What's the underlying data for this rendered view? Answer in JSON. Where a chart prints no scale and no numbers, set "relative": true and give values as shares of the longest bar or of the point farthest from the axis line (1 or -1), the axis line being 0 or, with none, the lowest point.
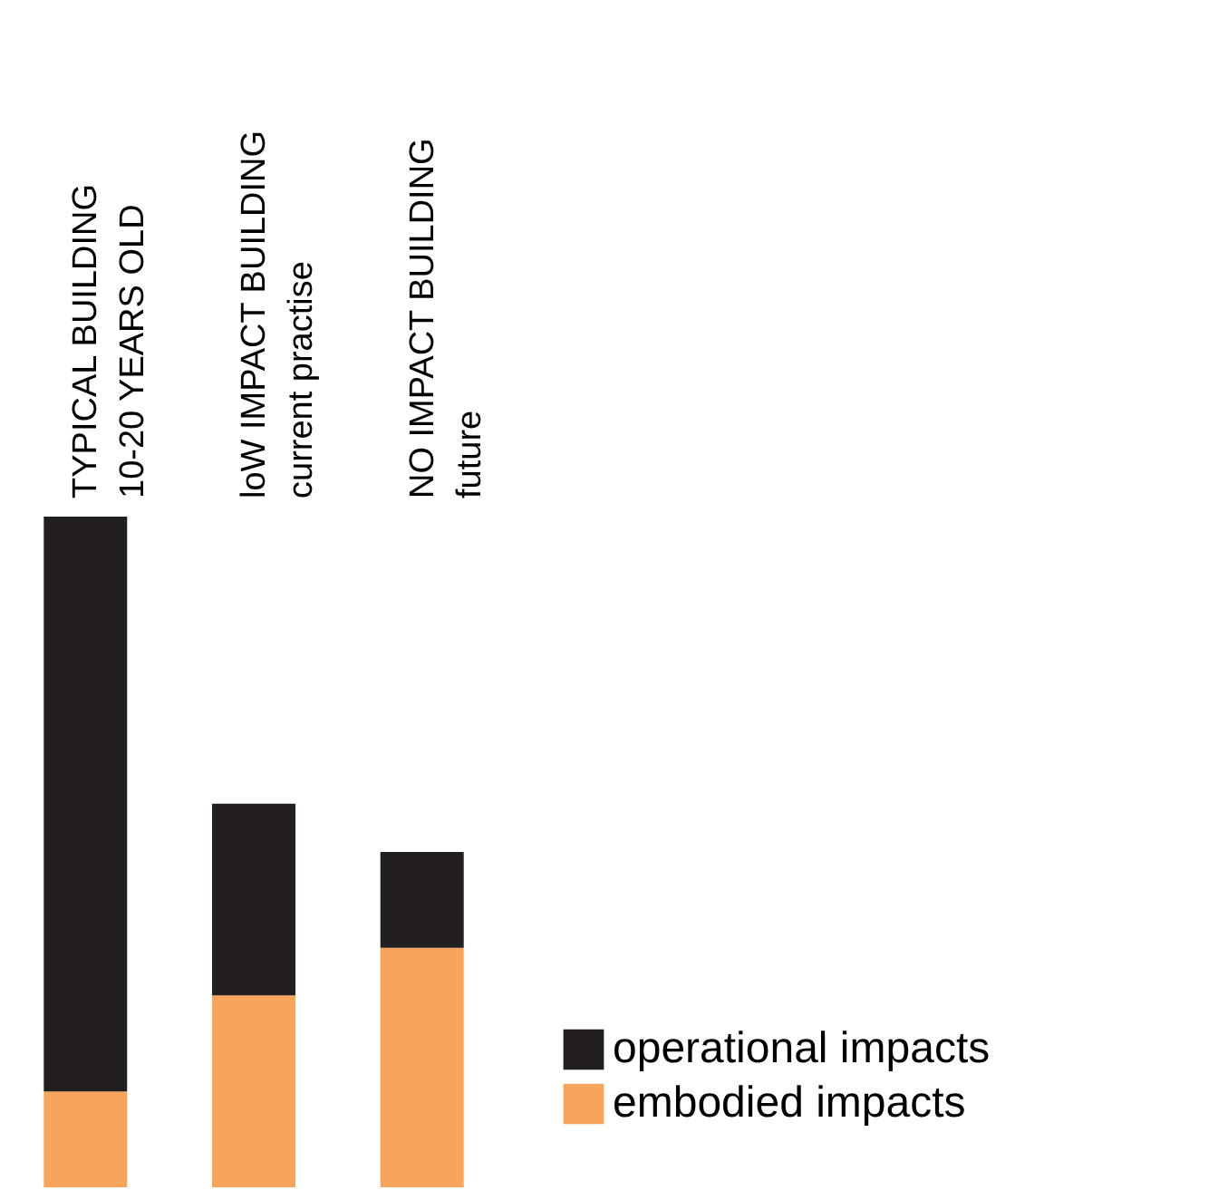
{
  "chart_data": {
    "type": "bar",
    "stacked": true,
    "relative": true,
    "categories": [
      "TYPICAL BUILDING\n10-20 YEARS OLD",
      "loW IMPACT BUILDING\ncurrent practise",
      "NO IMPACT BUILDING\nfuture"
    ],
    "series": [
      {
        "name": "embodied impacts",
        "color": "#f7a55d",
        "values": [
          0.143,
          0.286,
          0.357
        ]
      },
      {
        "name": "operational impacts",
        "color": "#231f20",
        "values": [
          0.857,
          0.286,
          0.143
        ]
      }
    ],
    "legend": "bottom right"
  }
}
